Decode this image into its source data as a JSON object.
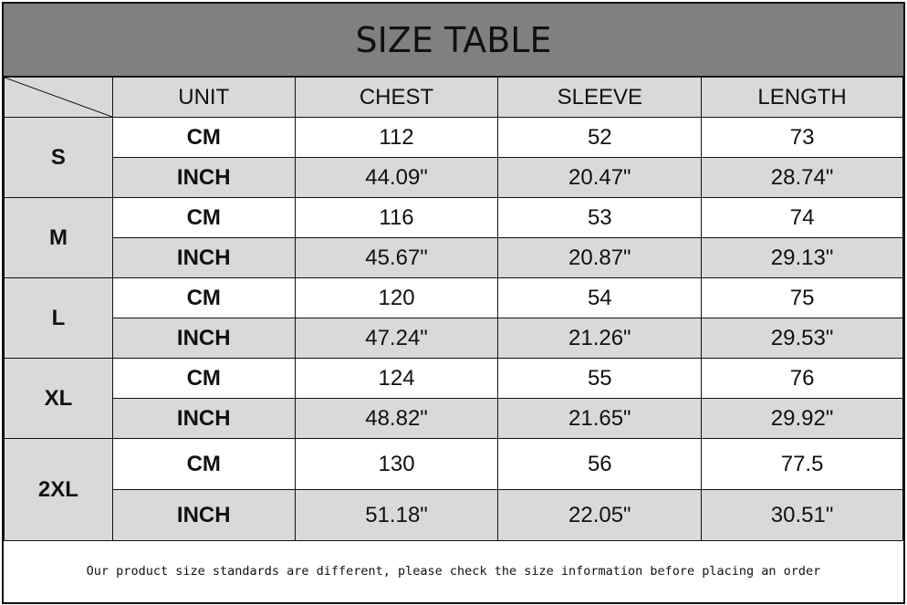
{
  "title": "SIZE TABLE",
  "headers": [
    "UNIT",
    "CHEST",
    "SLEEVE",
    "LENGTH"
  ],
  "sizes": [
    {
      "size": "S",
      "cm": {
        "unit": "CM",
        "chest": "112",
        "sleeve": "52",
        "length": "73"
      },
      "inch": {
        "unit": "INCH",
        "chest": "44.09\"",
        "sleeve": "20.47\"",
        "length": "28.74\""
      }
    },
    {
      "size": "M",
      "cm": {
        "unit": "CM",
        "chest": "116",
        "sleeve": "53",
        "length": "74"
      },
      "inch": {
        "unit": "INCH",
        "chest": "45.67\"",
        "sleeve": "20.87\"",
        "length": "29.13\""
      }
    },
    {
      "size": "L",
      "cm": {
        "unit": "CM",
        "chest": "120",
        "sleeve": "54",
        "length": "75"
      },
      "inch": {
        "unit": "INCH",
        "chest": "47.24\"",
        "sleeve": "21.26\"",
        "length": "29.53\""
      }
    },
    {
      "size": "XL",
      "cm": {
        "unit": "CM",
        "chest": "124",
        "sleeve": "55",
        "length": "76"
      },
      "inch": {
        "unit": "INCH",
        "chest": "48.82\"",
        "sleeve": "21.65\"",
        "length": "29.92\""
      }
    },
    {
      "size": "2XL",
      "cm": {
        "unit": "CM",
        "chest": "130",
        "sleeve": "56",
        "length": "77.5"
      },
      "inch": {
        "unit": "INCH",
        "chest": "51.18\"",
        "sleeve": "22.05\"",
        "length": "30.51\""
      }
    }
  ],
  "note": "Our product size standards are different, please check the size information before placing an order",
  "colors": {
    "title_bg": "#808080",
    "shaded": "#d9d9d9"
  }
}
